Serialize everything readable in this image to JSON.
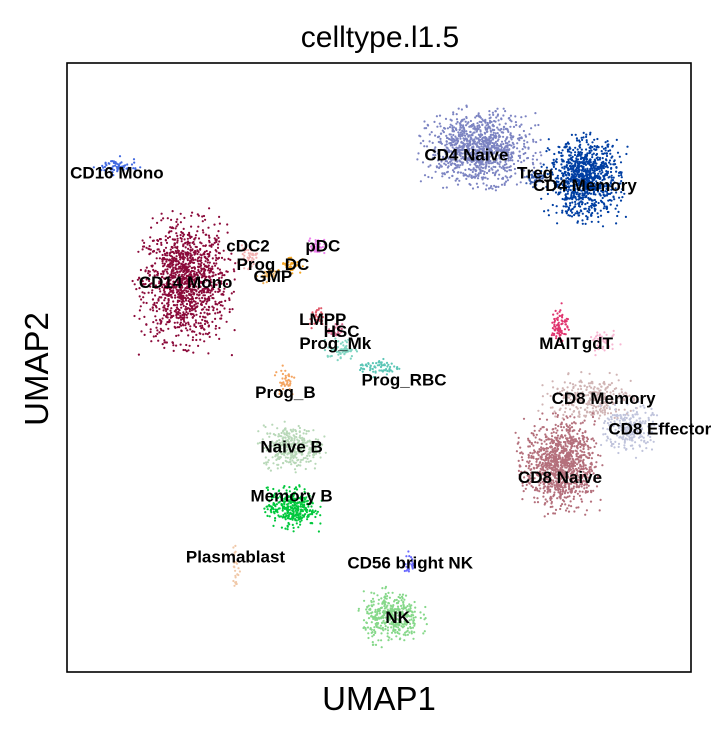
{
  "chart_data": {
    "type": "scatter",
    "title": "celltype.l1.5",
    "xlabel": "UMAP1",
    "ylabel": "UMAP2",
    "xlim": [
      0,
      100
    ],
    "ylim": [
      0,
      100
    ],
    "grid": false,
    "ticks": false,
    "legend": "on data",
    "clusters": [
      {
        "name": "CD14 Mono",
        "color": "#8b0a3a",
        "center": [
          19,
          64
        ],
        "spread": [
          6.0,
          8.5
        ],
        "n": 1300,
        "label_at": [
          19,
          64
        ]
      },
      {
        "name": "CD16 Mono",
        "color": "#4169e1",
        "center": [
          8,
          83
        ],
        "spread": [
          3.0,
          1.2
        ],
        "n": 60,
        "label_at": [
          8,
          82
        ]
      },
      {
        "name": "cDC2",
        "color": "#f2b1b1",
        "center": [
          29,
          68
        ],
        "spread": [
          1.2,
          1.5
        ],
        "n": 40,
        "label_at": [
          29,
          70
        ]
      },
      {
        "name": "pDC",
        "color": "#ee82ee",
        "center": [
          40,
          70
        ],
        "spread": [
          1.2,
          1.2
        ],
        "n": 40,
        "label_at": [
          41,
          70
        ]
      },
      {
        "name": "Prog_DC",
        "color": "#f5a623",
        "center": [
          36,
          67
        ],
        "spread": [
          1.5,
          1.2
        ],
        "n": 45,
        "label_at": [
          33,
          67
        ]
      },
      {
        "name": "GMP",
        "color": "#f0b35c",
        "center": [
          32,
          65
        ],
        "spread": [
          1.2,
          1.2
        ],
        "n": 30,
        "label_at": [
          33,
          65
        ]
      },
      {
        "name": "LMPP",
        "color": "#e05a6b",
        "center": [
          40,
          58
        ],
        "spread": [
          1.0,
          1.5
        ],
        "n": 35,
        "label_at": [
          41,
          58
        ]
      },
      {
        "name": "HSC",
        "color": "#d87093",
        "center": [
          43,
          56
        ],
        "spread": [
          1.0,
          1.0
        ],
        "n": 30,
        "label_at": [
          44,
          56
        ]
      },
      {
        "name": "Prog_Mk",
        "color": "#7fd4c1",
        "center": [
          44,
          53
        ],
        "spread": [
          2.0,
          1.5
        ],
        "n": 60,
        "label_at": [
          43,
          54
        ]
      },
      {
        "name": "Prog_RBC",
        "color": "#5cc6b6",
        "center": [
          50,
          50
        ],
        "spread": [
          3.0,
          1.2
        ],
        "n": 70,
        "label_at": [
          54,
          48
        ]
      },
      {
        "name": "Prog_B",
        "color": "#f4a460",
        "center": [
          35,
          48
        ],
        "spread": [
          1.5,
          2.5
        ],
        "n": 40,
        "label_at": [
          35,
          46
        ]
      },
      {
        "name": "Naive B",
        "color": "#b8d8b8",
        "center": [
          36,
          37
        ],
        "spread": [
          4.0,
          3.0
        ],
        "n": 350,
        "label_at": [
          36,
          37
        ]
      },
      {
        "name": "Memory B",
        "color": "#00c83c",
        "center": [
          36,
          27
        ],
        "spread": [
          3.5,
          2.8
        ],
        "n": 350,
        "label_at": [
          36,
          29
        ]
      },
      {
        "name": "Plasmablast",
        "color": "#f0c8a8",
        "center": [
          27,
          17
        ],
        "spread": [
          0.5,
          3.5
        ],
        "n": 25,
        "label_at": [
          27,
          19
        ]
      },
      {
        "name": "CD56 bright NK",
        "color": "#6a6aff",
        "center": [
          55,
          18
        ],
        "spread": [
          1.0,
          1.5
        ],
        "n": 25,
        "label_at": [
          55,
          18
        ]
      },
      {
        "name": "NK",
        "color": "#86d88a",
        "center": [
          52,
          9
        ],
        "spread": [
          4.0,
          3.5
        ],
        "n": 400,
        "label_at": [
          53,
          9
        ]
      },
      {
        "name": "CD4 Naive",
        "color": "#7c84c2",
        "center": [
          66,
          86
        ],
        "spread": [
          7.0,
          5.0
        ],
        "n": 1100,
        "label_at": [
          64,
          85
        ]
      },
      {
        "name": "Treg",
        "color": "#3b5fb0",
        "center": [
          75,
          81
        ],
        "spread": [
          1.2,
          1.2
        ],
        "n": 50,
        "label_at": [
          75,
          82
        ]
      },
      {
        "name": "CD4 Memory",
        "color": "#003fa3",
        "center": [
          83,
          81
        ],
        "spread": [
          5.0,
          5.5
        ],
        "n": 1000,
        "label_at": [
          83,
          80
        ]
      },
      {
        "name": "MAIT",
        "color": "#e0356f",
        "center": [
          79,
          57
        ],
        "spread": [
          1.2,
          2.5
        ],
        "n": 80,
        "label_at": [
          79,
          54
        ]
      },
      {
        "name": "gdT",
        "color": "#f7b6d2",
        "center": [
          86,
          54
        ],
        "spread": [
          2.0,
          1.5
        ],
        "n": 50,
        "label_at": [
          85,
          54
        ]
      },
      {
        "name": "CD8 Memory",
        "color": "#d0b4b4",
        "center": [
          84,
          45
        ],
        "spread": [
          6.0,
          3.0
        ],
        "n": 300,
        "label_at": [
          86,
          45
        ]
      },
      {
        "name": "CD8 Effector",
        "color": "#c0c4dc",
        "center": [
          90,
          40
        ],
        "spread": [
          3.5,
          3.5
        ],
        "n": 250,
        "label_at": [
          95,
          40
        ]
      },
      {
        "name": "CD8 Naive",
        "color": "#b4707c",
        "center": [
          79,
          34
        ],
        "spread": [
          5.0,
          6.0
        ],
        "n": 1100,
        "label_at": [
          79,
          32
        ]
      }
    ]
  }
}
